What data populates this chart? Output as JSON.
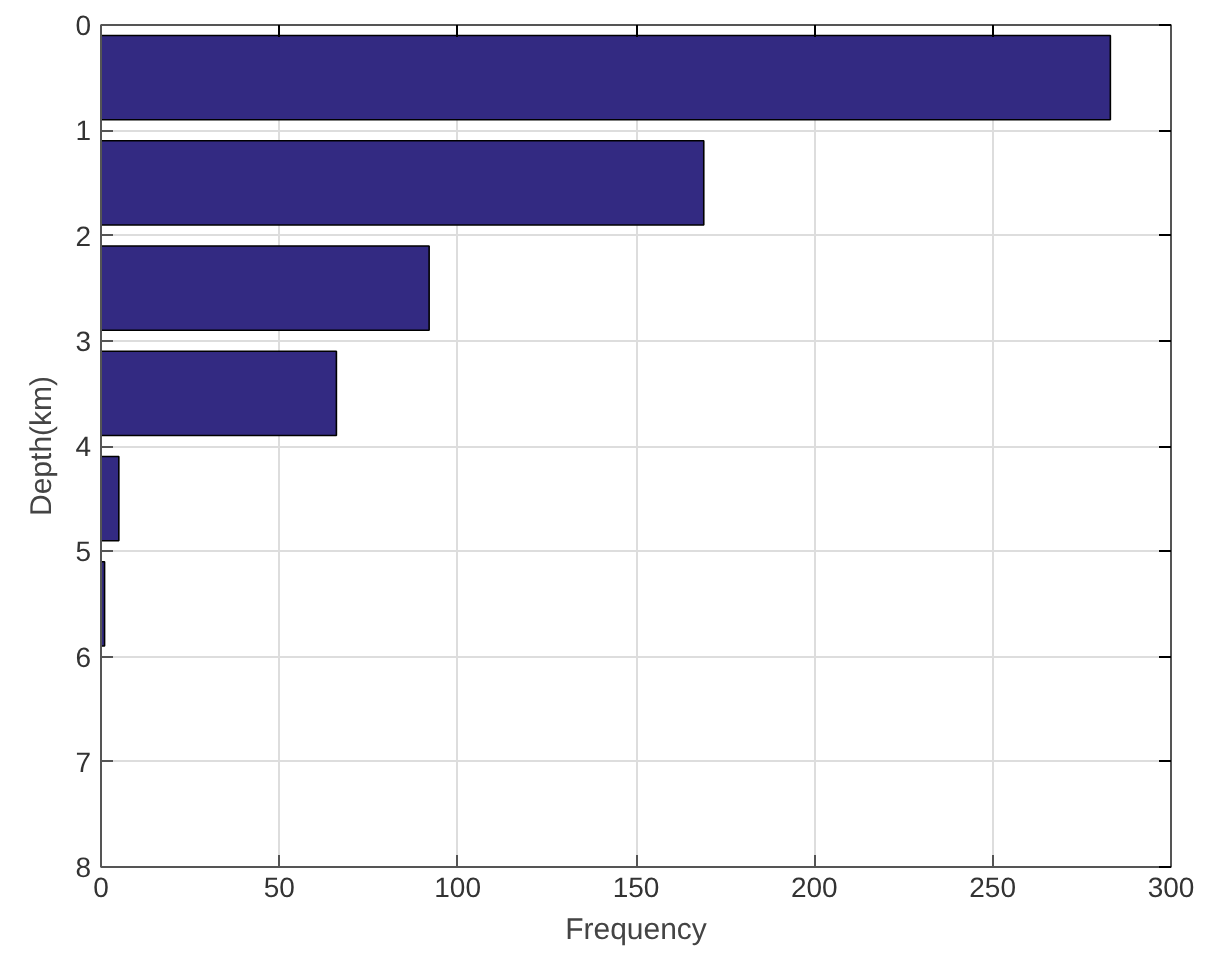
{
  "chart_data": {
    "type": "histogram",
    "orientation": "horizontal",
    "xlabel": "Frequency",
    "ylabel": "Depth(km)",
    "bins": [
      0,
      1,
      2,
      3,
      4,
      5,
      6
    ],
    "values": [
      283,
      169,
      92,
      66,
      5,
      1
    ],
    "color": "#332a82",
    "xlim": [
      0,
      300
    ],
    "xticks": [
      0,
      50,
      100,
      150,
      200,
      250,
      300
    ],
    "ylim": [
      8,
      0
    ],
    "yticks": [
      0,
      1,
      2,
      3,
      4,
      5,
      6,
      7,
      8
    ],
    "grid": true
  }
}
